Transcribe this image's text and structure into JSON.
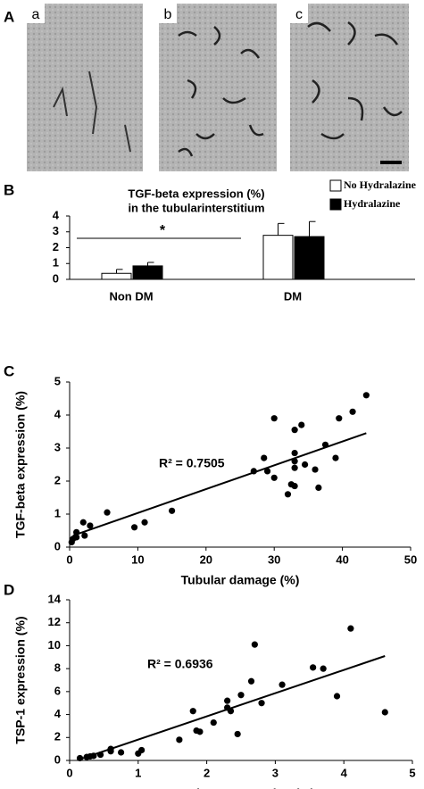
{
  "panel_labels": [
    "A",
    "B",
    "C",
    "D"
  ],
  "micrographs": [
    "a",
    "b",
    "c"
  ],
  "chart_data": [
    {
      "type": "bar",
      "title": "TGF-beta expression (%)",
      "subtitle": "in the tubularinterstitium",
      "categories": [
        "Non DM",
        "DM"
      ],
      "series": [
        {
          "name": "No Hydralazine",
          "color": "#ffffff",
          "values": [
            0.38,
            2.78
          ],
          "errors": [
            0.25,
            0.75
          ]
        },
        {
          "name": "Hydralazine",
          "color": "#000000",
          "values": [
            0.85,
            2.7
          ],
          "errors": [
            0.22,
            0.95
          ]
        }
      ],
      "annotation": "*",
      "ylim": [
        0,
        4
      ],
      "yticks": [
        0,
        1,
        2,
        3,
        4
      ],
      "legend": "upper right"
    },
    {
      "type": "scatter",
      "x_label": "Tubular damage (%)",
      "y_label": "TGF-beta expression (%)",
      "annotation": "R² = 0.7505",
      "x": [
        0.3,
        0.5,
        1,
        1,
        2,
        2.2,
        3,
        5.5,
        9.5,
        11,
        15,
        27,
        28.5,
        29,
        30,
        30,
        32,
        32.5,
        33,
        33,
        33,
        33,
        33,
        34,
        34.5,
        36,
        36.5,
        37.5,
        39,
        39.5,
        41.5,
        43.5
      ],
      "values": [
        0.15,
        0.25,
        0.45,
        0.3,
        0.75,
        0.35,
        0.65,
        1.05,
        0.6,
        0.75,
        1.1,
        2.3,
        2.7,
        2.3,
        3.9,
        2.1,
        1.6,
        1.9,
        2.4,
        2.6,
        2.85,
        3.55,
        1.85,
        3.7,
        2.5,
        2.35,
        1.8,
        3.1,
        2.7,
        3.9,
        4.1,
        4.6
      ],
      "trendline": {
        "x": [
          0.5,
          43.5
        ],
        "values": [
          0.35,
          3.45
        ]
      },
      "xlim": [
        0,
        50
      ],
      "xticks": [
        0,
        10,
        20,
        30,
        40,
        50
      ],
      "ylim": [
        0,
        5
      ],
      "yticks": [
        0,
        1,
        2,
        3,
        4,
        5
      ],
      "color": "#000000"
    },
    {
      "type": "scatter",
      "x_label": "TGF-beta expression (%)",
      "y_label": "TSP-1 expression (%)",
      "annotation": "R² = 0.6936",
      "x": [
        0.15,
        0.25,
        0.3,
        0.35,
        0.45,
        0.6,
        0.6,
        0.75,
        1.0,
        1.05,
        1.6,
        1.8,
        1.85,
        1.9,
        2.1,
        2.3,
        2.3,
        2.35,
        2.45,
        2.5,
        2.65,
        2.7,
        2.8,
        3.1,
        3.55,
        3.7,
        3.9,
        4.1,
        4.6
      ],
      "values": [
        0.2,
        0.3,
        0.35,
        0.4,
        0.5,
        0.8,
        1.0,
        0.7,
        0.6,
        0.9,
        1.8,
        4.3,
        2.6,
        2.5,
        3.3,
        5.2,
        4.6,
        4.3,
        2.3,
        5.7,
        6.9,
        10.1,
        5.0,
        6.6,
        8.1,
        8.0,
        5.6,
        11.5,
        4.2
      ],
      "trendline": {
        "x": [
          0.15,
          4.6
        ],
        "values": [
          0.1,
          9.1
        ]
      },
      "xlim": [
        0,
        5
      ],
      "xticks": [
        0,
        1,
        2,
        3,
        4,
        5
      ],
      "ylim": [
        0,
        14
      ],
      "yticks": [
        0,
        2,
        4,
        6,
        8,
        10,
        12,
        14
      ],
      "color": "#000000"
    }
  ]
}
